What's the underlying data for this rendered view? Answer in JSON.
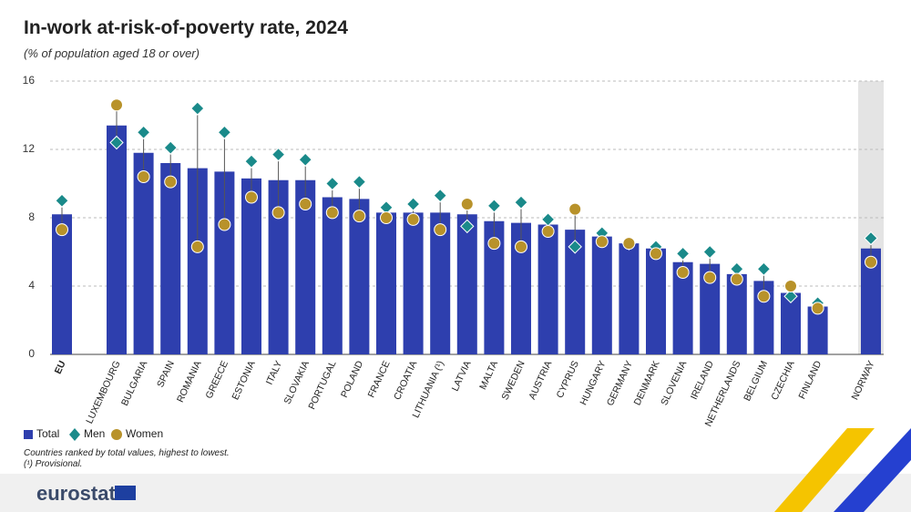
{
  "chart_data": {
    "type": "bar",
    "title": "In-work at-risk-of-poverty rate, 2024",
    "subtitle": "(% of population aged 18 or over)",
    "categories": [
      "EU",
      "LUXEMBOURG",
      "BULGARIA",
      "SPAIN",
      "ROMANIA",
      "GREECE",
      "ESTONIA",
      "ITALY",
      "SLOVAKIA",
      "PORTUGAL",
      "POLAND",
      "FRANCE",
      "CROATIA",
      "LITHUANIA (¹)",
      "LATVIA",
      "MALTA",
      "SWEDEN",
      "AUSTRIA",
      "CYPRUS",
      "HUNGARY",
      "GERMANY",
      "DENMARK",
      "SLOVENIA",
      "IRELAND",
      "NETHERLANDS",
      "BELGIUM",
      "CZECHIA",
      "FINLAND",
      "NORWAY"
    ],
    "series": [
      {
        "name": "Total",
        "color": "#2e3fae",
        "values": [
          8.2,
          13.4,
          11.8,
          11.2,
          10.9,
          10.7,
          10.3,
          10.2,
          10.2,
          9.2,
          9.1,
          8.3,
          8.3,
          8.3,
          8.2,
          7.8,
          7.7,
          7.6,
          7.3,
          6.9,
          6.5,
          6.2,
          5.4,
          5.3,
          4.7,
          4.3,
          3.6,
          2.8,
          6.2
        ]
      },
      {
        "name": "Men",
        "color": "#1a8a8a",
        "values": [
          9.0,
          12.4,
          13.0,
          12.1,
          14.4,
          13.0,
          11.3,
          11.7,
          11.4,
          10.0,
          10.1,
          8.6,
          8.8,
          9.3,
          7.5,
          8.7,
          8.9,
          7.9,
          6.3,
          7.1,
          6.5,
          6.3,
          5.9,
          6.0,
          5.0,
          5.0,
          3.4,
          3.0,
          6.8
        ]
      },
      {
        "name": "Women",
        "color": "#b8922a",
        "values": [
          7.3,
          14.6,
          10.4,
          10.1,
          6.3,
          7.6,
          9.2,
          8.3,
          8.8,
          8.3,
          8.1,
          8.0,
          7.9,
          7.3,
          8.8,
          6.5,
          6.3,
          7.2,
          8.5,
          6.6,
          6.5,
          5.9,
          4.8,
          4.5,
          4.4,
          3.4,
          4.0,
          2.7,
          5.4
        ]
      }
    ],
    "ylim": [
      0,
      16
    ],
    "yticks": [
      0,
      4,
      8,
      12,
      16
    ],
    "grid": true,
    "notes": [
      "Countries ranked by total values, highest to lowest.",
      "(¹) Provisional."
    ],
    "source": "eurostat"
  }
}
